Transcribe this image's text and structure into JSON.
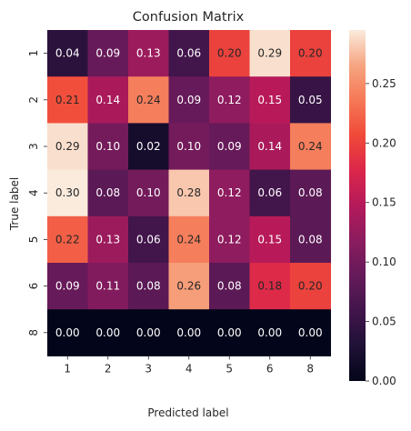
{
  "chart_data": {
    "type": "heatmap",
    "title": "Confusion Matrix",
    "xlabel": "Predicted label",
    "ylabel": "True label",
    "x_categories": [
      "1",
      "2",
      "3",
      "4",
      "5",
      "6",
      "8"
    ],
    "y_categories": [
      "1",
      "2",
      "3",
      "4",
      "5",
      "6",
      "8"
    ],
    "values": [
      [
        0.04,
        0.09,
        0.13,
        0.06,
        0.2,
        0.29,
        0.2
      ],
      [
        0.21,
        0.14,
        0.24,
        0.09,
        0.12,
        0.15,
        0.05
      ],
      [
        0.29,
        0.1,
        0.02,
        0.1,
        0.09,
        0.14,
        0.24
      ],
      [
        0.3,
        0.08,
        0.1,
        0.28,
        0.12,
        0.06,
        0.08
      ],
      [
        0.22,
        0.13,
        0.06,
        0.24,
        0.12,
        0.15,
        0.08
      ],
      [
        0.09,
        0.11,
        0.08,
        0.26,
        0.08,
        0.18,
        0.2
      ],
      [
        0.0,
        0.0,
        0.0,
        0.0,
        0.0,
        0.0,
        0.0
      ]
    ],
    "value_format": "2f",
    "colormap": "rocket",
    "colorbar": {
      "range": [
        0,
        0.295
      ],
      "ticks": [
        0.0,
        0.05,
        0.1,
        0.15,
        0.2,
        0.25
      ],
      "tick_labels": [
        "0.00",
        "0.05",
        "0.10",
        "0.15",
        "0.20",
        "0.25"
      ]
    }
  }
}
